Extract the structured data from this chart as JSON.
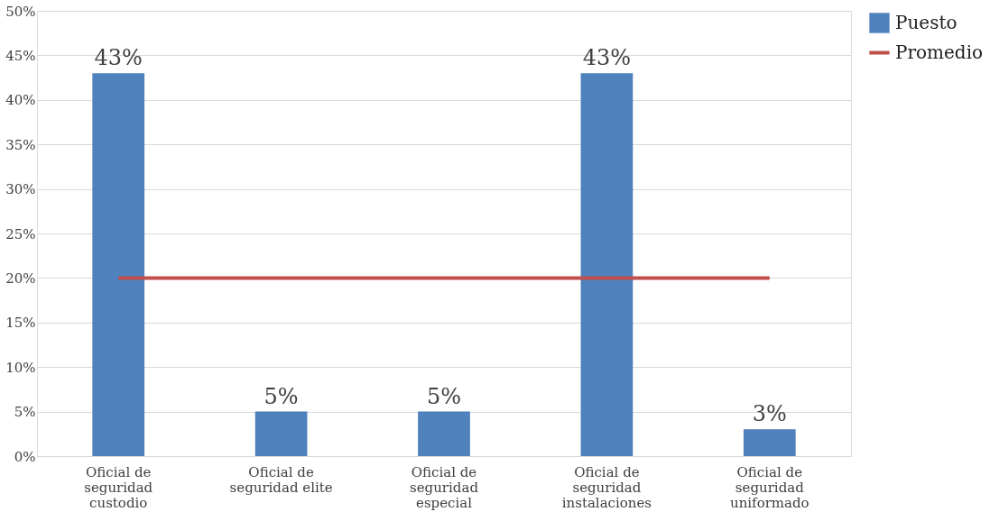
{
  "chart_data": {
    "type": "bar",
    "categories": [
      "Oficial de seguridad custodio",
      "Oficial de seguridad elite",
      "Oficial de seguridad especial",
      "Oficial de seguridad instalaciones",
      "Oficial de seguridad uniformado"
    ],
    "series": [
      {
        "name": "Puesto",
        "color": "#4f81bd",
        "values": [
          43,
          5,
          5,
          43,
          3
        ],
        "value_labels": [
          "43%",
          "5%",
          "5%",
          "43%",
          "3%"
        ]
      },
      {
        "name": "Promedio",
        "type": "line",
        "color": "#c0504d",
        "values": [
          20,
          20,
          20,
          20,
          20
        ]
      }
    ],
    "ylim": [
      0,
      50
    ],
    "yticks": [
      {
        "value": 0,
        "label": "0%"
      },
      {
        "value": 5,
        "label": "5%"
      },
      {
        "value": 10,
        "label": "10%"
      },
      {
        "value": 15,
        "label": "15%"
      },
      {
        "value": 20,
        "label": "20%"
      },
      {
        "value": 25,
        "label": "25%"
      },
      {
        "value": 30,
        "label": "30%"
      },
      {
        "value": 35,
        "label": "35%"
      },
      {
        "value": 40,
        "label": "40%"
      },
      {
        "value": 45,
        "label": "45%"
      },
      {
        "value": 50,
        "label": "50%"
      }
    ],
    "grid": "y",
    "legend": "right",
    "marker": "none",
    "line_style": "solid"
  }
}
